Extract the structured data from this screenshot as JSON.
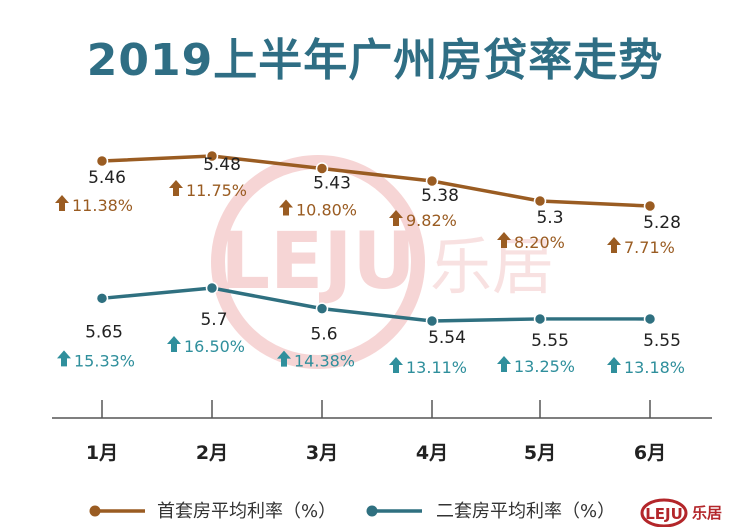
{
  "title": "2019上半年广州房贷率走势",
  "watermark": {
    "logo_text": "LEJU",
    "name": "乐居"
  },
  "logo": {
    "text": "LEJU",
    "name": "乐居"
  },
  "colors": {
    "first": "#9a5c22",
    "second": "#2f7080",
    "first_pct": "#9a5c22",
    "second_pct": "#2f8f9c",
    "axis": "#555555"
  },
  "chart_data": {
    "type": "line",
    "categories": [
      "1月",
      "2月",
      "3月",
      "4月",
      "5月",
      "6月"
    ],
    "series": [
      {
        "name": "首套房平均利率（%）",
        "values": [
          5.46,
          5.48,
          5.43,
          5.38,
          5.3,
          5.28
        ],
        "value_labels": [
          "5.46",
          "5.48",
          "5.43",
          "5.38",
          "5.3",
          "5.28"
        ],
        "change_labels": [
          "11.38%",
          "11.75%",
          "10.80%",
          "9.82%",
          "8.20%",
          "7.71%"
        ]
      },
      {
        "name": "二套房平均利率（%）",
        "values": [
          5.65,
          5.7,
          5.6,
          5.54,
          5.55,
          5.55
        ],
        "value_labels": [
          "5.65",
          "5.7",
          "5.6",
          "5.54",
          "5.55",
          "5.55"
        ],
        "change_labels": [
          "15.33%",
          "16.50%",
          "14.38%",
          "13.11%",
          "13.25%",
          "13.18%"
        ]
      }
    ],
    "legend_position": "bottom",
    "grid": false
  }
}
